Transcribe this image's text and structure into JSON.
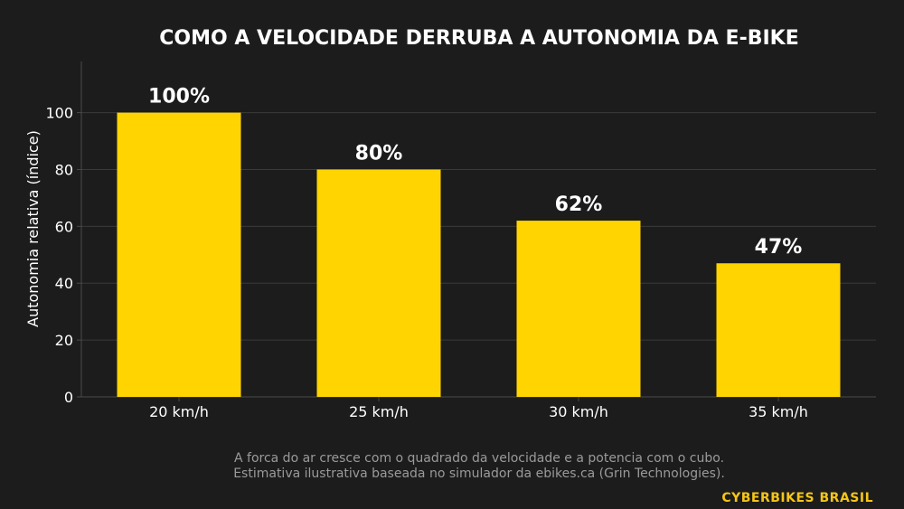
{
  "chart_data": {
    "type": "bar",
    "title": "COMO A VELOCIDADE DERRUBA A AUTONOMIA DA E-BIKE",
    "ylabel": "Autonomia relativa (índice)",
    "xlabel": "",
    "categories": [
      "20 km/h",
      "25 km/h",
      "30 km/h",
      "35 km/h"
    ],
    "values": [
      100,
      80,
      62,
      47
    ],
    "data_labels": [
      "100%",
      "80%",
      "62%",
      "47%"
    ],
    "ylim": [
      0,
      118
    ],
    "yticks": [
      0,
      20,
      40,
      60,
      80,
      100
    ],
    "grid": true,
    "legend": "none"
  },
  "notes": [
    "A forca do ar cresce com o quadrado da velocidade e a potencia com o cubo.",
    "Estimativa ilustrativa baseada no simulador da ebikes.ca (Grin Technologies)."
  ],
  "brand": "CYBERBIKES BRASIL",
  "colors": {
    "background": "#1c1c1c",
    "bar": "#ffd400",
    "grid": "#3a3a3a",
    "axis": "#4a4a4a",
    "text": "#ffffff",
    "note": "#9a9a9a",
    "brand": "#f5c518"
  }
}
